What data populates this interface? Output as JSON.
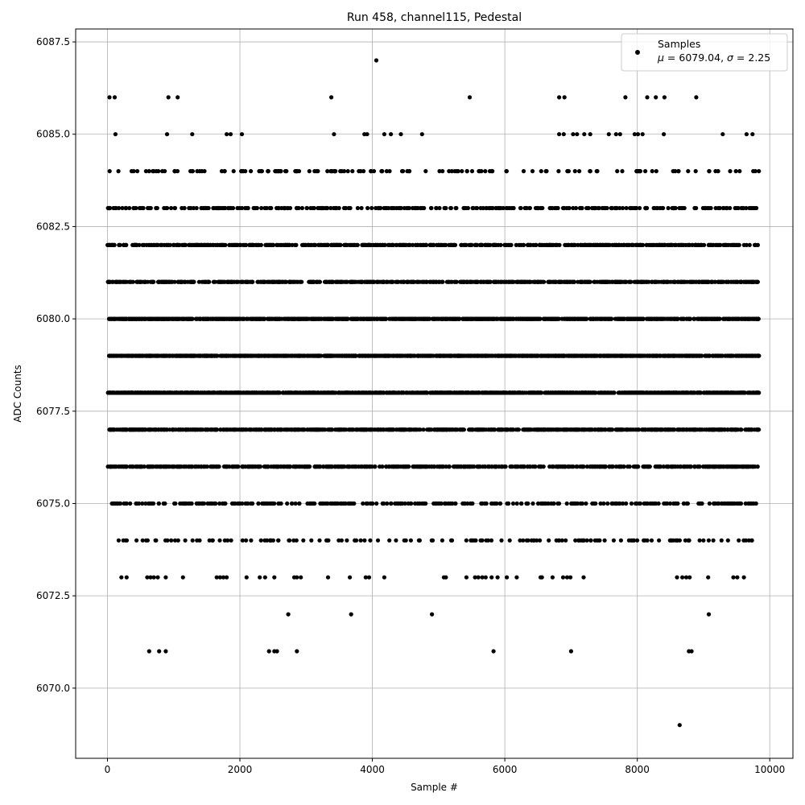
{
  "chart_data": {
    "type": "scatter",
    "title": "Run 458, channel115, Pedestal",
    "xlabel": "Sample #",
    "ylabel": "ADC Counts",
    "xlim": [
      -480,
      10350
    ],
    "ylim": [
      6068.1,
      6087.85
    ],
    "xticks": [
      0,
      2000,
      4000,
      6000,
      8000,
      10000
    ],
    "xtick_labels": [
      "0",
      "2000",
      "4000",
      "6000",
      "8000",
      "10000"
    ],
    "yticks": [
      6070.0,
      6072.5,
      6075.0,
      6077.5,
      6080.0,
      6082.5,
      6085.0,
      6087.5
    ],
    "ytick_labels": [
      "6070.0",
      "6072.5",
      "6075.0",
      "6077.5",
      "6080.0",
      "6082.5",
      "6085.0",
      "6087.5"
    ],
    "grid": true,
    "legend": {
      "placement": "top-right",
      "series_name": "Samples",
      "stats_prefix_mu": "μ",
      "stats_mid": " = 6079.04, ",
      "stats_prefix_sigma": "σ",
      "stats_suffix": " = 2.25"
    },
    "marker_color": "#000000",
    "series": [
      {
        "name": "Samples",
        "sparse_points": [
          [
            30,
            6086
          ],
          [
            110,
            6086
          ],
          [
            920,
            6086
          ],
          [
            1060,
            6086
          ],
          [
            3380,
            6086
          ],
          [
            5470,
            6086
          ],
          [
            6820,
            6086
          ],
          [
            6900,
            6086
          ],
          [
            7820,
            6086
          ],
          [
            8150,
            6086
          ],
          [
            8280,
            6086
          ],
          [
            8410,
            6086
          ],
          [
            8890,
            6086
          ],
          [
            4060,
            6087
          ],
          [
            8640,
            6069
          ],
          [
            120,
            6085
          ],
          [
            900,
            6085
          ],
          [
            1280,
            6085
          ],
          [
            1800,
            6085
          ],
          [
            1860,
            6085
          ],
          [
            2030,
            6085
          ],
          [
            3420,
            6085
          ],
          [
            3880,
            6085
          ],
          [
            3920,
            6085
          ],
          [
            4180,
            6085
          ],
          [
            4280,
            6085
          ],
          [
            4430,
            6085
          ],
          [
            4750,
            6085
          ],
          [
            6820,
            6085
          ],
          [
            6890,
            6085
          ],
          [
            7030,
            6085
          ],
          [
            7090,
            6085
          ],
          [
            7200,
            6085
          ],
          [
            7290,
            6085
          ],
          [
            7570,
            6085
          ],
          [
            7680,
            6085
          ],
          [
            7740,
            6085
          ],
          [
            7960,
            6085
          ],
          [
            8010,
            6085
          ],
          [
            8080,
            6085
          ],
          [
            8400,
            6085
          ],
          [
            9290,
            6085
          ],
          [
            9650,
            6085
          ],
          [
            9740,
            6085
          ],
          [
            210,
            6073
          ],
          [
            290,
            6073
          ],
          [
            600,
            6073
          ],
          [
            650,
            6073
          ],
          [
            700,
            6073
          ],
          [
            760,
            6073
          ],
          [
            880,
            6073
          ],
          [
            1140,
            6073
          ],
          [
            1650,
            6073
          ],
          [
            1700,
            6073
          ],
          [
            1750,
            6073
          ],
          [
            1800,
            6073
          ],
          [
            2100,
            6073
          ],
          [
            2300,
            6073
          ],
          [
            2380,
            6073
          ],
          [
            2520,
            6073
          ],
          [
            2820,
            6073
          ],
          [
            2860,
            6073
          ],
          [
            2920,
            6073
          ],
          [
            3330,
            6073
          ],
          [
            3660,
            6073
          ],
          [
            3900,
            6073
          ],
          [
            3950,
            6073
          ],
          [
            4180,
            6073
          ],
          [
            5080,
            6073
          ],
          [
            5110,
            6073
          ],
          [
            5420,
            6073
          ],
          [
            5550,
            6073
          ],
          [
            5600,
            6073
          ],
          [
            5660,
            6073
          ],
          [
            5710,
            6073
          ],
          [
            5800,
            6073
          ],
          [
            5890,
            6073
          ],
          [
            6030,
            6073
          ],
          [
            6180,
            6073
          ],
          [
            6540,
            6073
          ],
          [
            6560,
            6073
          ],
          [
            6720,
            6073
          ],
          [
            6880,
            6073
          ],
          [
            6940,
            6073
          ],
          [
            6990,
            6073
          ],
          [
            7190,
            6073
          ],
          [
            8600,
            6073
          ],
          [
            8680,
            6073
          ],
          [
            8740,
            6073
          ],
          [
            8790,
            6073
          ],
          [
            9070,
            6073
          ],
          [
            9450,
            6073
          ],
          [
            9510,
            6073
          ],
          [
            9610,
            6073
          ],
          [
            2730,
            6072
          ],
          [
            3680,
            6072
          ],
          [
            4900,
            6072
          ],
          [
            9080,
            6072
          ],
          [
            630,
            6071
          ],
          [
            780,
            6071
          ],
          [
            880,
            6071
          ],
          [
            2440,
            6071
          ],
          [
            2520,
            6071
          ],
          [
            2560,
            6071
          ],
          [
            2860,
            6071
          ],
          [
            5830,
            6071
          ],
          [
            7000,
            6071
          ],
          [
            8780,
            6071
          ],
          [
            8820,
            6071
          ]
        ],
        "dense_rows": [
          {
            "y": 6084,
            "count": 150
          },
          {
            "y": 6083,
            "count": 330
          },
          {
            "y": 6082,
            "count": 620
          },
          {
            "y": 6081,
            "count": 900
          },
          {
            "y": 6080,
            "count": 1250
          },
          {
            "y": 6079,
            "count": 1400
          },
          {
            "y": 6078,
            "count": 1250
          },
          {
            "y": 6077,
            "count": 900
          },
          {
            "y": 6076,
            "count": 620
          },
          {
            "y": 6075,
            "count": 330
          },
          {
            "y": 6074,
            "count": 150
          }
        ],
        "x_range": [
          0,
          9840
        ]
      }
    ]
  }
}
